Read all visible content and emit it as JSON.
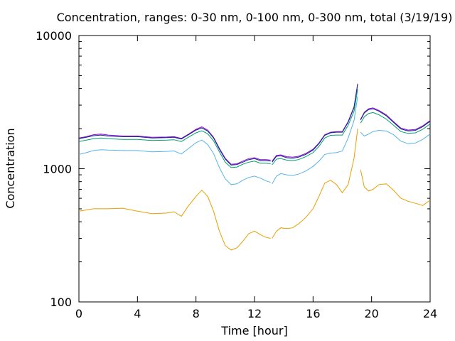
{
  "chart_data": {
    "type": "line",
    "title": "Concentration, ranges: 0-30 nm, 0-100 nm, 0-300 nm, total (3/19/19)",
    "xlabel": "Time [hour]",
    "ylabel": "Concentration",
    "xlim": [
      0,
      24
    ],
    "ylim": [
      100,
      10000
    ],
    "yscale": "log",
    "grid": false,
    "legend": "none",
    "x_ticks": [
      0,
      4,
      8,
      12,
      16,
      20,
      24
    ],
    "y_ticks": [
      100,
      1000,
      10000
    ],
    "series": [
      {
        "color": "#9400d3",
        "segments": [
          [
            [
              0,
              1700
            ],
            [
              0.5,
              1740
            ],
            [
              1,
              1800
            ],
            [
              1.5,
              1820
            ],
            [
              2,
              1790
            ],
            [
              3,
              1760
            ],
            [
              4,
              1760
            ],
            [
              5,
              1720
            ],
            [
              6,
              1730
            ],
            [
              6.5,
              1740
            ],
            [
              7,
              1690
            ],
            [
              7.5,
              1820
            ],
            [
              8,
              1980
            ],
            [
              8.4,
              2060
            ],
            [
              8.8,
              1950
            ],
            [
              9.2,
              1720
            ],
            [
              9.6,
              1420
            ],
            [
              10,
              1200
            ],
            [
              10.4,
              1080
            ],
            [
              10.8,
              1090
            ],
            [
              11.2,
              1140
            ],
            [
              11.6,
              1190
            ],
            [
              12,
              1210
            ],
            [
              12.4,
              1170
            ],
            [
              12.8,
              1170
            ],
            [
              13.1,
              1160
            ]
          ],
          [
            [
              13.2,
              1140
            ],
            [
              13.5,
              1260
            ],
            [
              13.8,
              1270
            ],
            [
              14.2,
              1230
            ],
            [
              14.6,
              1220
            ],
            [
              15,
              1240
            ],
            [
              15.5,
              1300
            ],
            [
              16,
              1400
            ],
            [
              16.4,
              1560
            ],
            [
              16.8,
              1800
            ],
            [
              17.2,
              1880
            ],
            [
              17.6,
              1900
            ],
            [
              18,
              1900
            ],
            [
              18.4,
              2260
            ],
            [
              18.8,
              2920
            ],
            [
              19.05,
              4350
            ]
          ],
          [
            [
              19.25,
              2350
            ],
            [
              19.5,
              2650
            ],
            [
              19.8,
              2820
            ],
            [
              20.1,
              2860
            ],
            [
              20.5,
              2740
            ],
            [
              21,
              2540
            ],
            [
              21.5,
              2260
            ],
            [
              22,
              2020
            ],
            [
              22.5,
              1950
            ],
            [
              23,
              1970
            ],
            [
              23.5,
              2100
            ],
            [
              24,
              2300
            ]
          ]
        ]
      },
      {
        "color": "#0b2a88",
        "segments": [
          [
            [
              0,
              1680
            ],
            [
              0.5,
              1720
            ],
            [
              1,
              1770
            ],
            [
              1.5,
              1790
            ],
            [
              2,
              1760
            ],
            [
              3,
              1740
            ],
            [
              4,
              1740
            ],
            [
              5,
              1700
            ],
            [
              6,
              1710
            ],
            [
              6.5,
              1720
            ],
            [
              7,
              1670
            ],
            [
              7.5,
              1800
            ],
            [
              8,
              1950
            ],
            [
              8.4,
              2020
            ],
            [
              8.8,
              1920
            ],
            [
              9.2,
              1700
            ],
            [
              9.6,
              1400
            ],
            [
              10,
              1180
            ],
            [
              10.4,
              1065
            ],
            [
              10.8,
              1075
            ],
            [
              11.2,
              1120
            ],
            [
              11.6,
              1170
            ],
            [
              12,
              1190
            ],
            [
              12.4,
              1150
            ],
            [
              12.8,
              1150
            ],
            [
              13.1,
              1140
            ]
          ],
          [
            [
              13.2,
              1120
            ],
            [
              13.5,
              1240
            ],
            [
              13.8,
              1250
            ],
            [
              14.2,
              1210
            ],
            [
              14.6,
              1200
            ],
            [
              15,
              1220
            ],
            [
              15.5,
              1280
            ],
            [
              16,
              1380
            ],
            [
              16.4,
              1540
            ],
            [
              16.8,
              1780
            ],
            [
              17.2,
              1860
            ],
            [
              17.6,
              1880
            ],
            [
              18,
              1880
            ],
            [
              18.4,
              2230
            ],
            [
              18.8,
              2880
            ],
            [
              19.05,
              4300
            ]
          ],
          [
            [
              19.25,
              2320
            ],
            [
              19.5,
              2620
            ],
            [
              19.8,
              2780
            ],
            [
              20.1,
              2820
            ],
            [
              20.5,
              2700
            ],
            [
              21,
              2500
            ],
            [
              21.5,
              2230
            ],
            [
              22,
              1990
            ],
            [
              22.5,
              1920
            ],
            [
              23,
              1940
            ],
            [
              23.5,
              2070
            ],
            [
              24,
              2270
            ]
          ]
        ]
      },
      {
        "color": "#009e73",
        "segments": [
          [
            [
              0,
              1600
            ],
            [
              0.5,
              1640
            ],
            [
              1,
              1680
            ],
            [
              1.5,
              1700
            ],
            [
              2,
              1680
            ],
            [
              3,
              1660
            ],
            [
              4,
              1660
            ],
            [
              5,
              1630
            ],
            [
              6,
              1640
            ],
            [
              6.5,
              1650
            ],
            [
              7,
              1600
            ],
            [
              7.5,
              1730
            ],
            [
              8,
              1860
            ],
            [
              8.4,
              1930
            ],
            [
              8.8,
              1830
            ],
            [
              9.2,
              1620
            ],
            [
              9.6,
              1340
            ],
            [
              10,
              1120
            ],
            [
              10.4,
              1020
            ],
            [
              10.8,
              1030
            ],
            [
              11.2,
              1080
            ],
            [
              11.6,
              1120
            ],
            [
              12,
              1140
            ],
            [
              12.4,
              1100
            ],
            [
              12.8,
              1100
            ],
            [
              13.1,
              1090
            ]
          ],
          [
            [
              13.2,
              1070
            ],
            [
              13.5,
              1180
            ],
            [
              13.8,
              1190
            ],
            [
              14.2,
              1160
            ],
            [
              14.6,
              1150
            ],
            [
              15,
              1170
            ],
            [
              15.5,
              1230
            ],
            [
              16,
              1320
            ],
            [
              16.4,
              1470
            ],
            [
              16.8,
              1700
            ],
            [
              17.2,
              1780
            ],
            [
              17.6,
              1790
            ],
            [
              18,
              1790
            ],
            [
              18.4,
              2120
            ],
            [
              18.8,
              2700
            ],
            [
              19.05,
              3950
            ]
          ],
          [
            [
              19.25,
              2200
            ],
            [
              19.5,
              2450
            ],
            [
              19.8,
              2600
            ],
            [
              20.1,
              2640
            ],
            [
              20.5,
              2540
            ],
            [
              21,
              2360
            ],
            [
              21.5,
              2120
            ],
            [
              22,
              1900
            ],
            [
              22.5,
              1840
            ],
            [
              23,
              1860
            ],
            [
              23.5,
              1980
            ],
            [
              24,
              2170
            ]
          ]
        ]
      },
      {
        "color": "#56b4e9",
        "segments": [
          [
            [
              0,
              1280
            ],
            [
              0.5,
              1320
            ],
            [
              1,
              1370
            ],
            [
              1.5,
              1390
            ],
            [
              2,
              1380
            ],
            [
              3,
              1370
            ],
            [
              4,
              1370
            ],
            [
              5,
              1340
            ],
            [
              6,
              1350
            ],
            [
              6.5,
              1360
            ],
            [
              7,
              1290
            ],
            [
              7.5,
              1420
            ],
            [
              8,
              1570
            ],
            [
              8.4,
              1640
            ],
            [
              8.8,
              1520
            ],
            [
              9.2,
              1300
            ],
            [
              9.6,
              1020
            ],
            [
              10,
              840
            ],
            [
              10.4,
              760
            ],
            [
              10.8,
              770
            ],
            [
              11.2,
              820
            ],
            [
              11.6,
              860
            ],
            [
              12,
              880
            ],
            [
              12.4,
              850
            ],
            [
              12.8,
              810
            ],
            [
              13.1,
              790
            ]
          ],
          [
            [
              13.2,
              770
            ],
            [
              13.5,
              880
            ],
            [
              13.8,
              920
            ],
            [
              14.2,
              900
            ],
            [
              14.6,
              890
            ],
            [
              15,
              910
            ],
            [
              15.5,
              960
            ],
            [
              16,
              1040
            ],
            [
              16.4,
              1140
            ],
            [
              16.8,
              1280
            ],
            [
              17.2,
              1310
            ],
            [
              17.6,
              1320
            ],
            [
              18,
              1360
            ],
            [
              18.4,
              1700
            ],
            [
              18.8,
              2300
            ],
            [
              19.05,
              3500
            ]
          ],
          [
            [
              19.25,
              1880
            ],
            [
              19.5,
              1760
            ],
            [
              19.8,
              1820
            ],
            [
              20.1,
              1900
            ],
            [
              20.5,
              1940
            ],
            [
              21,
              1920
            ],
            [
              21.5,
              1800
            ],
            [
              22,
              1610
            ],
            [
              22.5,
              1540
            ],
            [
              23,
              1560
            ],
            [
              23.5,
              1660
            ],
            [
              24,
              1820
            ]
          ]
        ]
      },
      {
        "color": "#e69f00",
        "segments": [
          [
            [
              0,
              480
            ],
            [
              0.5,
              490
            ],
            [
              1,
              500
            ],
            [
              1.5,
              500
            ],
            [
              2,
              500
            ],
            [
              3,
              505
            ],
            [
              4,
              480
            ],
            [
              5,
              460
            ],
            [
              6,
              465
            ],
            [
              6.5,
              475
            ],
            [
              7,
              440
            ],
            [
              7.5,
              530
            ],
            [
              8,
              620
            ],
            [
              8.4,
              690
            ],
            [
              8.8,
              620
            ],
            [
              9.2,
              480
            ],
            [
              9.6,
              340
            ],
            [
              10,
              265
            ],
            [
              10.4,
              245
            ],
            [
              10.8,
              255
            ],
            [
              11.2,
              285
            ],
            [
              11.6,
              325
            ],
            [
              12,
              340
            ],
            [
              12.4,
              320
            ],
            [
              12.8,
              305
            ],
            [
              13.1,
              300
            ]
          ],
          [
            [
              13.2,
              300
            ],
            [
              13.5,
              340
            ],
            [
              13.8,
              360
            ],
            [
              14.2,
              355
            ],
            [
              14.6,
              360
            ],
            [
              15,
              385
            ],
            [
              15.5,
              430
            ],
            [
              16,
              500
            ],
            [
              16.4,
              620
            ],
            [
              16.8,
              780
            ],
            [
              17.2,
              820
            ],
            [
              17.6,
              760
            ],
            [
              18,
              660
            ],
            [
              18.4,
              760
            ],
            [
              18.8,
              1200
            ],
            [
              19.05,
              2000
            ]
          ],
          [
            [
              19.25,
              980
            ],
            [
              19.5,
              730
            ],
            [
              19.8,
              680
            ],
            [
              20.1,
              700
            ],
            [
              20.5,
              760
            ],
            [
              21,
              770
            ],
            [
              21.5,
              690
            ],
            [
              22,
              600
            ],
            [
              22.5,
              570
            ],
            [
              23,
              550
            ],
            [
              23.5,
              530
            ],
            [
              24,
              580
            ]
          ]
        ]
      }
    ]
  }
}
